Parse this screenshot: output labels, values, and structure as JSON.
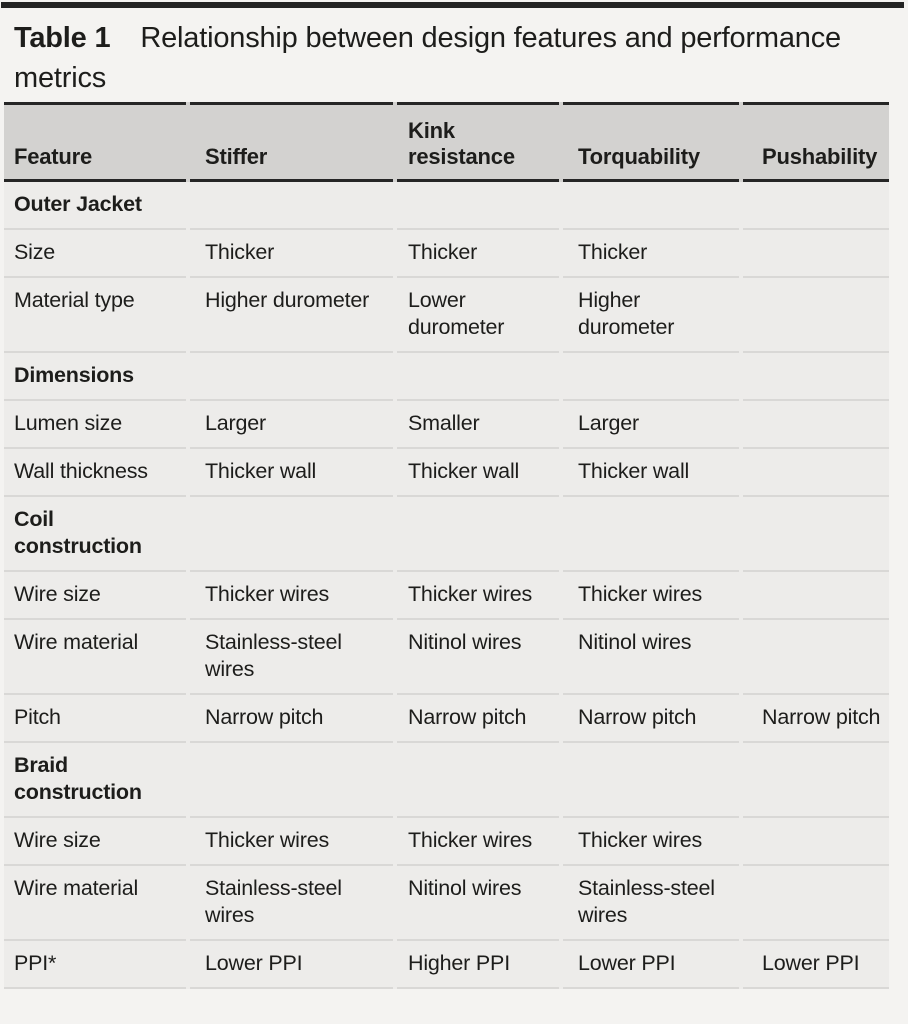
{
  "colors": {
    "page_bg": "#f4f3f1",
    "header_bg": "#d3d2d0",
    "body_bg": "#edecea",
    "dark_rule": "#232323",
    "light_rule": "#d9d8d6",
    "text": "#1d1d1b"
  },
  "title": {
    "label": "Table 1",
    "caption": "Relationship between design features and performance metrics"
  },
  "table": {
    "columns": [
      "Feature",
      "Stiffer",
      "Kink\nresistance",
      "Torquability",
      "Pushability"
    ],
    "rows": [
      {
        "type": "section",
        "cells": [
          "Outer Jacket",
          "",
          "",
          "",
          ""
        ]
      },
      {
        "type": "data",
        "cells": [
          "Size",
          "Thicker",
          "Thicker",
          "Thicker",
          ""
        ]
      },
      {
        "type": "data",
        "cells": [
          "Material type",
          "Higher durometer",
          "Lower\ndurometer",
          "Higher\ndurometer",
          ""
        ]
      },
      {
        "type": "section",
        "cells": [
          "Dimensions",
          "",
          "",
          "",
          ""
        ]
      },
      {
        "type": "data",
        "cells": [
          "Lumen size",
          "Larger",
          "Smaller",
          "Larger",
          ""
        ]
      },
      {
        "type": "data",
        "cells": [
          "Wall thickness",
          "Thicker wall",
          "Thicker wall",
          "Thicker wall",
          ""
        ]
      },
      {
        "type": "section",
        "cells": [
          "Coil\nconstruction",
          "",
          "",
          "",
          ""
        ]
      },
      {
        "type": "data",
        "cells": [
          "Wire size",
          "Thicker wires",
          "Thicker wires",
          "Thicker wires",
          ""
        ]
      },
      {
        "type": "data",
        "cells": [
          "Wire material",
          "Stainless-steel\nwires",
          "Nitinol wires",
          "Nitinol wires",
          ""
        ]
      },
      {
        "type": "data",
        "cells": [
          "Pitch",
          "Narrow pitch",
          "Narrow pitch",
          "Narrow pitch",
          "Narrow pitch"
        ]
      },
      {
        "type": "section",
        "cells": [
          "Braid\nconstruction",
          "",
          "",
          "",
          ""
        ]
      },
      {
        "type": "data",
        "cells": [
          "Wire size",
          "Thicker wires",
          "Thicker wires",
          "Thicker wires",
          ""
        ]
      },
      {
        "type": "data",
        "cells": [
          "Wire material",
          "Stainless-steel\nwires",
          "Nitinol wires",
          "Stainless-steel\nwires",
          ""
        ]
      },
      {
        "type": "data",
        "cells": [
          "PPI*",
          "Lower PPI",
          "Higher PPI",
          "Lower PPI",
          "Lower PPI"
        ]
      }
    ]
  }
}
